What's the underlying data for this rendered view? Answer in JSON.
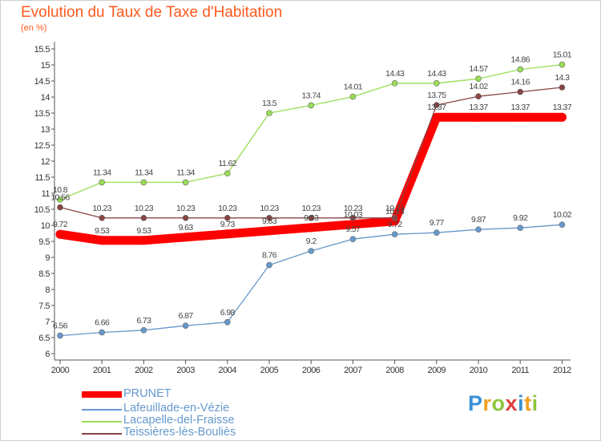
{
  "title": "Evolution du Taux de Taxe d'Habitation",
  "unit": "(en %)",
  "logo": "Proxiti",
  "chart_data": {
    "type": "line",
    "title": "Evolution du Taux de Taxe d'Habitation",
    "ylabel": "(en %)",
    "xlabel": "",
    "x": [
      "2000",
      "2001",
      "2002",
      "2003",
      "2004",
      "2005",
      "2006",
      "2007",
      "2008",
      "2009",
      "2010",
      "2011",
      "2012"
    ],
    "yticks": [
      6,
      6.5,
      7,
      7.5,
      8,
      8.5,
      9,
      9.5,
      10,
      10.5,
      11,
      11.5,
      12,
      12.5,
      13,
      13.5,
      14,
      14.5,
      15,
      15.5
    ],
    "ylim": [
      6,
      15.5
    ],
    "grid": false,
    "legend_position": "bottom-left",
    "series": [
      {
        "name": "PRUNET",
        "color": "#ff0000",
        "values": [
          9.72,
          9.53,
          9.53,
          9.63,
          9.73,
          9.83,
          9.93,
          10.03,
          10.13,
          13.37,
          13.37,
          13.37,
          13.37
        ],
        "labels": [
          "9.72",
          "9.53",
          "9.53",
          "9.63",
          "9.73",
          "9.83",
          "9.93",
          "10.03",
          "10.13",
          "13.37",
          "13.37",
          "13.37",
          "13.37"
        ]
      },
      {
        "name": "Lafeuillade-en-Vézie",
        "color": "#6699cc",
        "values": [
          6.56,
          6.66,
          6.73,
          6.87,
          6.98,
          8.76,
          9.2,
          9.57,
          9.72,
          9.77,
          9.87,
          9.92,
          10.02
        ],
        "labels": [
          "6.56",
          "6.66",
          "6.73",
          "6.87",
          "6.98",
          "8.76",
          "9.2",
          "9.57",
          "9.72",
          "9.77",
          "9.87",
          "9.92",
          "10.02"
        ]
      },
      {
        "name": "Lacapelle-del-Fraisse",
        "color": "#99dd55",
        "values": [
          10.8,
          11.34,
          11.34,
          11.34,
          11.62,
          13.5,
          13.74,
          14.01,
          14.43,
          14.43,
          14.57,
          14.86,
          15.01
        ],
        "labels": [
          "10.8",
          "11.34",
          "11.34",
          "11.34",
          "11.62",
          "13.5",
          "13.74",
          "14.01",
          "14.43",
          "14.43",
          "14.57",
          "14.86",
          "15.01"
        ]
      },
      {
        "name": "Teissières-lès-Bouliès",
        "color": "#884444",
        "values": [
          10.56,
          10.23,
          10.23,
          10.23,
          10.23,
          10.23,
          10.23,
          10.23,
          10.23,
          13.75,
          14.02,
          14.16,
          14.3
        ],
        "labels": [
          "10.56",
          "10.23",
          "10.23",
          "10.23",
          "10.23",
          "10.23",
          "10.23",
          "10.23",
          "10.23",
          "13.75",
          "14.02",
          "14.16",
          "14.3"
        ]
      }
    ]
  }
}
